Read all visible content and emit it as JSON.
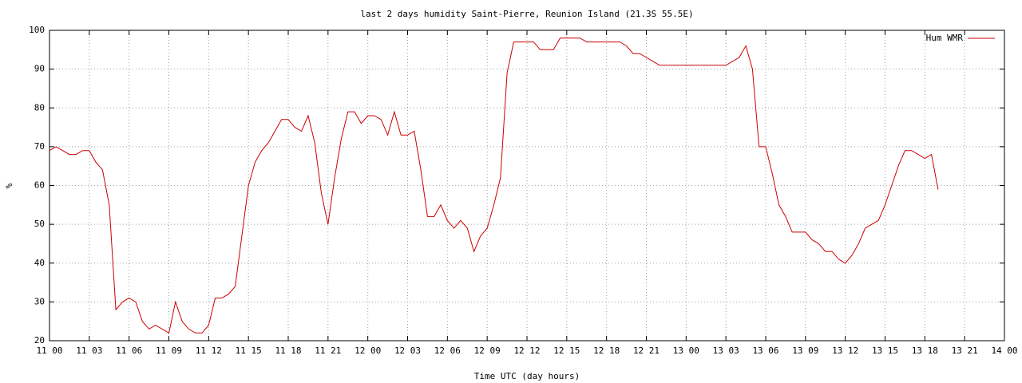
{
  "chart_data": {
    "type": "line",
    "title": "last 2 days humidity Saint-Pierre, Reunion Island (21.3S 55.5E)",
    "x_label": "Time UTC (day hours)",
    "y_label": "%",
    "x": [
      0,
      0.5,
      1,
      1.5,
      2,
      2.5,
      3,
      3.5,
      4,
      4.5,
      5,
      5.5,
      6,
      6.5,
      7,
      7.5,
      8,
      8.5,
      9,
      9.5,
      10,
      10.5,
      11,
      11.5,
      12,
      12.5,
      13,
      13.5,
      14,
      14.5,
      15,
      15.5,
      16,
      16.5,
      17,
      17.5,
      18,
      18.5,
      19,
      19.5,
      20,
      20.5,
      21,
      21.5,
      22,
      22.5,
      23,
      23.5,
      24,
      24.5,
      25,
      25.5,
      26,
      26.5,
      27,
      27.5,
      28,
      28.5,
      29,
      29.5,
      30,
      30.5,
      31,
      31.5,
      32,
      32.5,
      33,
      33.5,
      34,
      34.5,
      35,
      35.5,
      36,
      36.5,
      37,
      37.5,
      38,
      38.5,
      39,
      39.5,
      40,
      40.5,
      41,
      41.5,
      42,
      42.5,
      43,
      43.5,
      44,
      44.5,
      45,
      45.5,
      46,
      46.5,
      47,
      47.5,
      48,
      48.5,
      49,
      49.5,
      50,
      50.5,
      51,
      51.5,
      52,
      52.5,
      53,
      53.5,
      54,
      54.5,
      55,
      55.5,
      56,
      56.5,
      57,
      57.5,
      58,
      58.5,
      59,
      59.5,
      60,
      60.5,
      61,
      61.5,
      62,
      62.5,
      63,
      63.5,
      64,
      64.5,
      65,
      65.5,
      66,
      66.5,
      67
    ],
    "series": [
      {
        "name": "Hum WMR",
        "color": "#cc0000",
        "values": [
          69,
          70,
          69,
          68,
          68,
          69,
          69,
          66,
          64,
          55,
          28,
          30,
          31,
          30,
          25,
          23,
          24,
          23,
          22,
          30,
          25,
          23,
          22,
          22,
          24,
          31,
          31,
          32,
          34,
          47,
          60,
          66,
          69,
          71,
          74,
          77,
          77,
          75,
          74,
          78,
          71,
          58,
          50,
          62,
          72,
          79,
          79,
          76,
          78,
          78,
          77,
          73,
          79,
          73,
          73,
          74,
          64,
          52,
          52,
          55,
          51,
          49,
          51,
          49,
          43,
          47,
          49,
          55,
          62,
          89,
          97,
          97,
          97,
          97,
          95,
          95,
          95,
          98,
          98,
          98,
          98,
          97,
          97,
          97,
          97,
          97,
          97,
          96,
          94,
          94,
          93,
          92,
          91,
          91,
          91,
          91,
          91,
          91,
          91,
          91,
          91,
          91,
          91,
          92,
          93,
          96,
          90,
          70,
          70,
          63,
          55,
          52,
          48,
          48,
          48,
          46,
          45,
          43,
          43,
          41,
          40,
          42,
          45,
          49,
          50,
          51,
          55,
          60,
          65,
          69,
          69,
          68,
          67,
          68,
          59
        ]
      }
    ],
    "xlim": [
      0,
      72
    ],
    "xticks": [
      {
        "value": 0,
        "label": "11 00"
      },
      {
        "value": 3,
        "label": "11 03"
      },
      {
        "value": 6,
        "label": "11 06"
      },
      {
        "value": 9,
        "label": "11 09"
      },
      {
        "value": 12,
        "label": "11 12"
      },
      {
        "value": 15,
        "label": "11 15"
      },
      {
        "value": 18,
        "label": "11 18"
      },
      {
        "value": 21,
        "label": "11 21"
      },
      {
        "value": 24,
        "label": "12 00"
      },
      {
        "value": 27,
        "label": "12 03"
      },
      {
        "value": 30,
        "label": "12 06"
      },
      {
        "value": 33,
        "label": "12 09"
      },
      {
        "value": 36,
        "label": "12 12"
      },
      {
        "value": 39,
        "label": "12 15"
      },
      {
        "value": 42,
        "label": "12 18"
      },
      {
        "value": 45,
        "label": "12 21"
      },
      {
        "value": 48,
        "label": "13 00"
      },
      {
        "value": 51,
        "label": "13 03"
      },
      {
        "value": 54,
        "label": "13 06"
      },
      {
        "value": 57,
        "label": "13 09"
      },
      {
        "value": 60,
        "label": "13 12"
      },
      {
        "value": 63,
        "label": "13 15"
      },
      {
        "value": 66,
        "label": "13 18"
      },
      {
        "value": 69,
        "label": "13 21"
      },
      {
        "value": 72,
        "label": "14 00"
      }
    ],
    "ylim": [
      20,
      100
    ],
    "yticks": [
      20,
      30,
      40,
      50,
      60,
      70,
      80,
      90,
      100
    ],
    "grid": true,
    "legend": "top-right"
  }
}
